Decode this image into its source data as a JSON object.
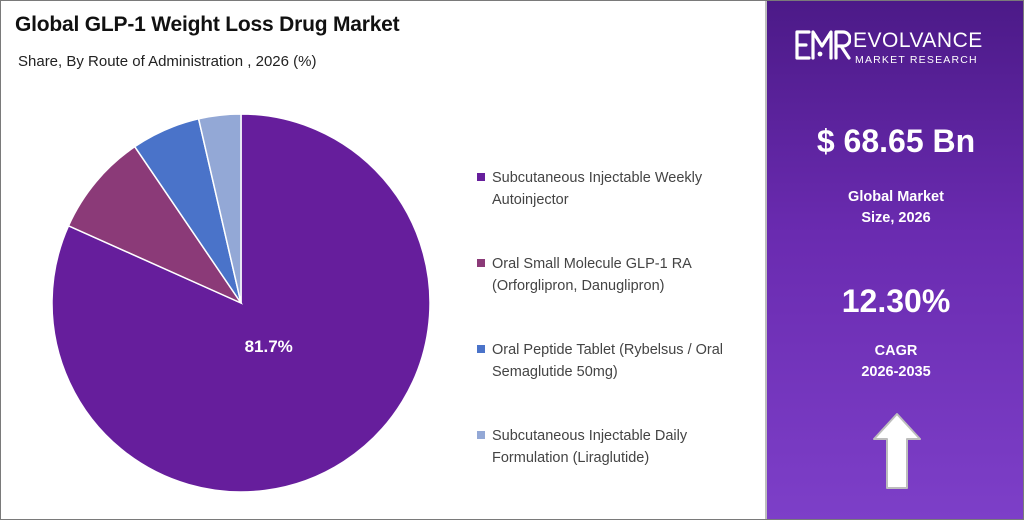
{
  "chart_data": {
    "type": "pie",
    "title": "Global GLP-1 Weight Loss Drug Market",
    "subtitle": "Share, By Route of Administration , 2026 (%)",
    "categories": [
      "Subcutaneous Injectable Weekly Autoinjector",
      "Oral Small Molecule GLP-1 RA (Orforglipron, Danuglipron)",
      "Oral Peptide Tablet (Rybelsus / Oral Semaglutide 50mg)",
      "Subcutaneous Injectable Daily Formulation (Liraglutide)"
    ],
    "legend_lines": [
      "Subcutaneous Injectable Weekly\nAutoinjector",
      "Oral Small Molecule GLP-1 RA\n(Orforglipron, Danuglipron)",
      "Oral Peptide Tablet (Rybelsus / Oral\nSemaglutide 50mg)",
      "Subcutaneous Injectable Daily\nFormulation (Liraglutide)"
    ],
    "values": [
      81.7,
      8.8,
      5.9,
      3.6
    ],
    "colors": [
      "#661e9c",
      "#8b3a78",
      "#4a73c9",
      "#93a8d6"
    ],
    "data_labels": [
      "81.7%",
      "",
      "",
      ""
    ],
    "legend_position": "right"
  },
  "side_panel": {
    "brand_name": "EVOLVANCE",
    "brand_sub": "MARKET RESEARCH",
    "market_size": "$ 68.65 Bn",
    "market_size_label": "Global Market\nSize, 2026",
    "cagr": "12.30%",
    "cagr_label": "CAGR\n2026-2035",
    "icon": "up-arrow-icon",
    "gradient_top": "#4c1a88",
    "gradient_bottom": "#7d3fc8"
  }
}
